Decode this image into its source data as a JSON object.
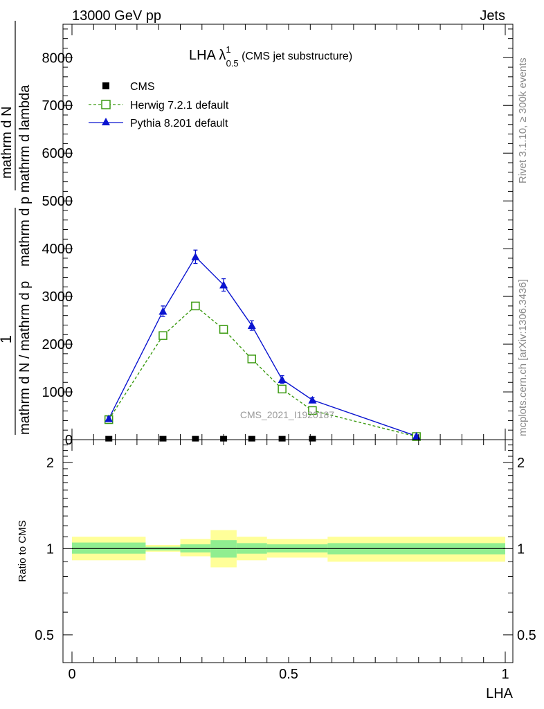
{
  "header": {
    "left": "13000 GeV pp",
    "right": "Jets"
  },
  "side_labels": {
    "rivet": "Rivet 3.1.10, ≥ 300k events",
    "mcplots": "mcplots.cern.ch [arXiv:1306.3436]"
  },
  "plot_title": {
    "main": "LHA λ",
    "sup": "1",
    "sub": "0.5",
    "suffix": " (CMS jet substructure)"
  },
  "watermark": "CMS_2021_I1920187",
  "colors": {
    "herwig": "#3a9a10",
    "pythia": "#0a14d0",
    "cms": "#000000",
    "band_outer": "#ffff99",
    "band_inner": "#90ee90"
  },
  "chart_data": [
    {
      "type": "line",
      "panel": "main",
      "ylabel_parts": {
        "numer_one": "1",
        "denom": "mathrm d N / mathrm d p",
        "numer_full": "mathrm d N",
        "denom_full": "mathrm d p mathrm d lambda"
      },
      "ylim": [
        0,
        8700
      ],
      "y_ticks": [
        0,
        1000,
        2000,
        3000,
        4000,
        5000,
        6000,
        7000,
        8000
      ],
      "y_tick_labels": [
        "0",
        "1000",
        "2000",
        "3000",
        "4000",
        "5000",
        "6000",
        "7000",
        "8000"
      ],
      "xlim": [
        0,
        1
      ],
      "legend_position": "top-left",
      "series": [
        {
          "name": "CMS",
          "marker": "square-filled",
          "points": [
            {
              "x": 0.085,
              "y": 20
            },
            {
              "x": 0.21,
              "y": 20
            },
            {
              "x": 0.285,
              "y": 20
            },
            {
              "x": 0.35,
              "y": 20
            },
            {
              "x": 0.415,
              "y": 20
            },
            {
              "x": 0.485,
              "y": 20
            },
            {
              "x": 0.555,
              "y": 20
            }
          ]
        },
        {
          "name": "Herwig 7.2.1 default",
          "marker": "square-open",
          "dashed": true,
          "points": [
            {
              "x": 0.085,
              "y": 420
            },
            {
              "x": 0.21,
              "y": 2180
            },
            {
              "x": 0.285,
              "y": 2800
            },
            {
              "x": 0.35,
              "y": 2310
            },
            {
              "x": 0.415,
              "y": 1690
            },
            {
              "x": 0.485,
              "y": 1060
            },
            {
              "x": 0.555,
              "y": 610
            },
            {
              "x": 0.795,
              "y": 65
            }
          ]
        },
        {
          "name": "Pythia 8.201 default",
          "marker": "triangle-filled",
          "dashed": false,
          "points": [
            {
              "x": 0.085,
              "y": 440,
              "err": 40
            },
            {
              "x": 0.21,
              "y": 2690,
              "err": 110
            },
            {
              "x": 0.285,
              "y": 3830,
              "err": 140
            },
            {
              "x": 0.35,
              "y": 3240,
              "err": 130
            },
            {
              "x": 0.415,
              "y": 2390,
              "err": 100
            },
            {
              "x": 0.485,
              "y": 1260,
              "err": 80
            },
            {
              "x": 0.555,
              "y": 830,
              "err": 50
            },
            {
              "x": 0.795,
              "y": 75,
              "err": 20
            }
          ]
        }
      ]
    },
    {
      "type": "area",
      "panel": "ratio",
      "ylabel": "Ratio to CMS",
      "xlabel": "LHA",
      "y_scale": "log",
      "ylim": [
        0.4,
        2.4
      ],
      "y_ticks": [
        0.5,
        1,
        2
      ],
      "y_tick_labels": [
        "0.5",
        "1",
        "2"
      ],
      "xlim": [
        0,
        1
      ],
      "x_ticks": [
        0,
        0.5,
        1
      ],
      "x_tick_labels": [
        "0",
        "0.5",
        "1"
      ],
      "bands": [
        {
          "x0": 0.0,
          "x1": 0.17,
          "outer": [
            0.91,
            1.1
          ],
          "inner": [
            0.96,
            1.05
          ]
        },
        {
          "x0": 0.17,
          "x1": 0.25,
          "outer": [
            0.975,
            1.03
          ],
          "inner": [
            0.985,
            1.015
          ]
        },
        {
          "x0": 0.25,
          "x1": 0.32,
          "outer": [
            0.94,
            1.08
          ],
          "inner": [
            0.97,
            1.035
          ]
        },
        {
          "x0": 0.32,
          "x1": 0.38,
          "outer": [
            0.86,
            1.16
          ],
          "inner": [
            0.93,
            1.07
          ]
        },
        {
          "x0": 0.38,
          "x1": 0.45,
          "outer": [
            0.91,
            1.1
          ],
          "inner": [
            0.96,
            1.045
          ]
        },
        {
          "x0": 0.45,
          "x1": 0.59,
          "outer": [
            0.93,
            1.08
          ],
          "inner": [
            0.97,
            1.035
          ]
        },
        {
          "x0": 0.59,
          "x1": 1.0,
          "outer": [
            0.9,
            1.1
          ],
          "inner": [
            0.955,
            1.045
          ]
        }
      ],
      "reference_line": 1
    }
  ]
}
